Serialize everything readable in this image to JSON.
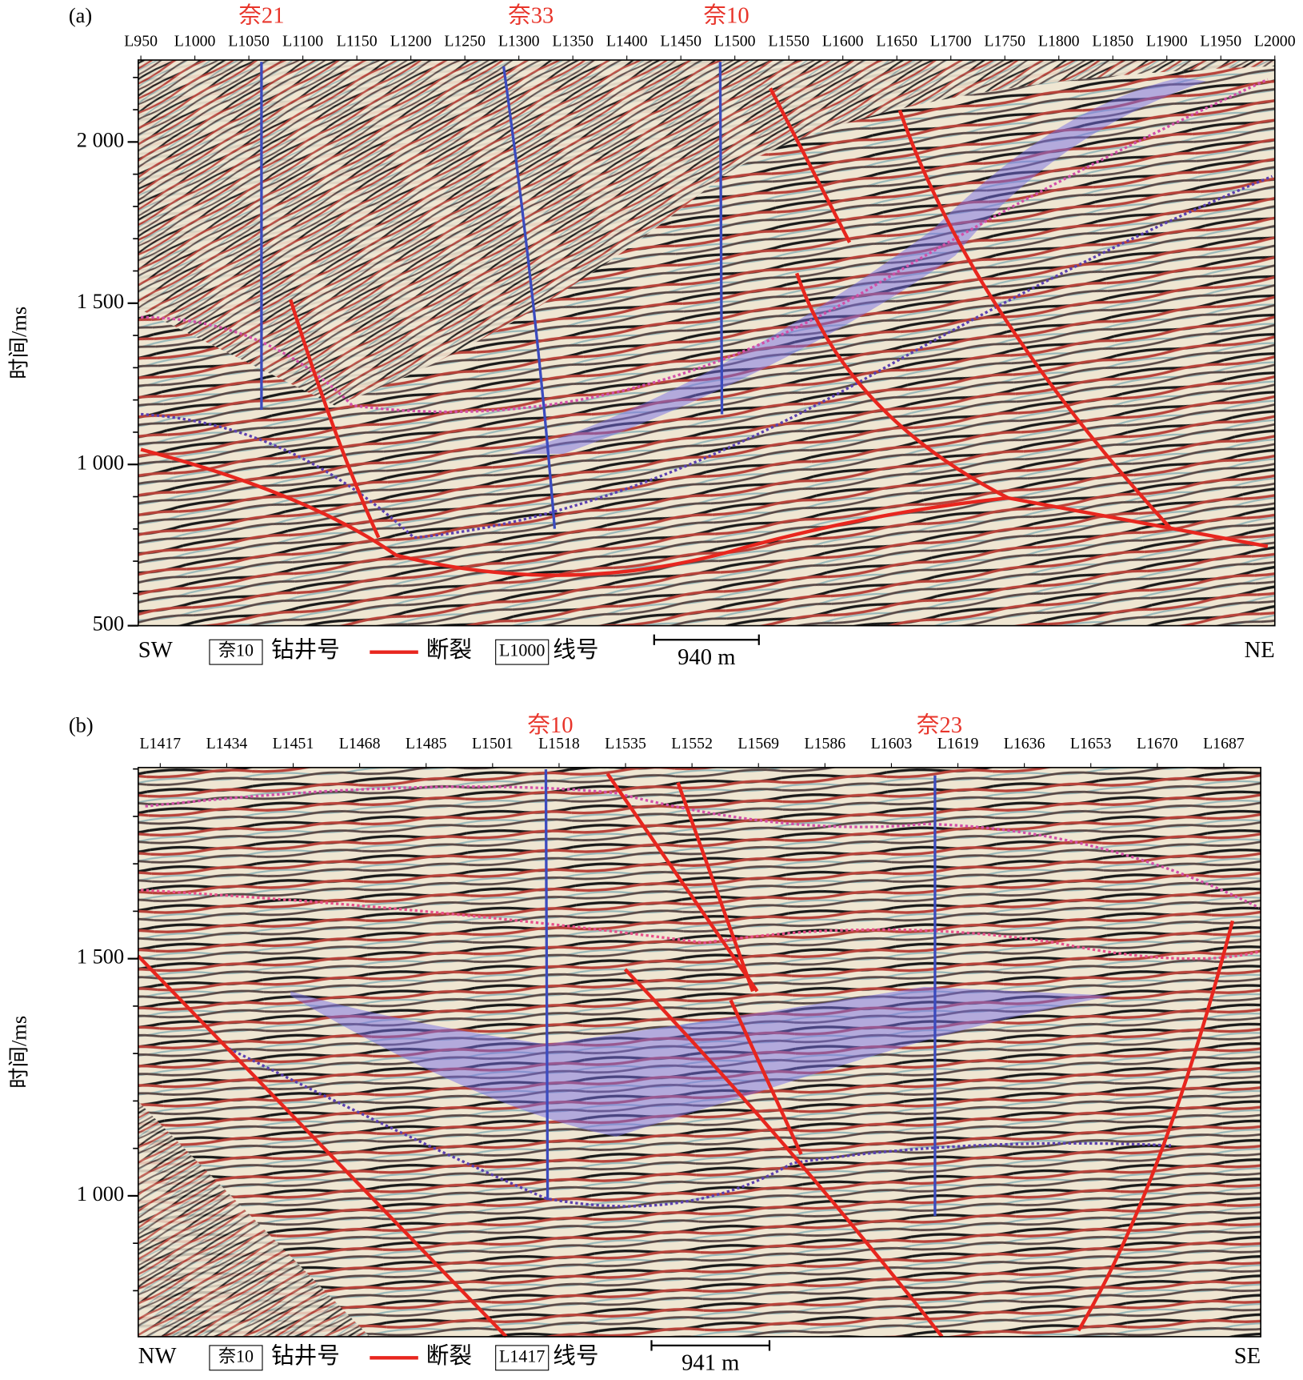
{
  "panels": [
    {
      "label": "(a)",
      "line_labels": [
        "L950",
        "L1000",
        "L1050",
        "L1100",
        "L1150",
        "L1200",
        "L1250",
        "L1300",
        "L1350",
        "L1400",
        "L1450",
        "L1500",
        "L1550",
        "L1600",
        "L1650",
        "L1700",
        "L1750",
        "L1800",
        "L1850",
        "L1900",
        "L1950",
        "L2000"
      ],
      "wells": [
        "奈21",
        "奈33",
        "奈10"
      ],
      "y_axis_label": "时间/ms",
      "ylim": [
        500,
        2254
      ],
      "yticks": [
        500,
        {
          "value": 1000,
          "label": "1 000"
        },
        {
          "value": 1500,
          "label": "1 500"
        },
        {
          "value": 2000,
          "label": "2 000"
        }
      ],
      "yminor": [
        600,
        700,
        800,
        900,
        1100,
        1200,
        1300,
        1400,
        1600,
        1700,
        1800,
        1900,
        2100,
        2200
      ],
      "legend": {
        "left": "SW",
        "well_box": "奈10",
        "well_text": "钻井号",
        "fault_text": "断裂",
        "line_box": "L1000",
        "line_text": "线号",
        "scale": "940 m",
        "right": "NE"
      }
    },
    {
      "label": "(b)",
      "line_labels": [
        "L1417",
        "L1434",
        "L1451",
        "L1468",
        "L1485",
        "L1501",
        "L1518",
        "L1535",
        "L1552",
        "L1569",
        "L1586",
        "L1603",
        "L1619",
        "L1636",
        "L1653",
        "L1670",
        "L1687"
      ],
      "wells": [
        "奈10",
        "奈23"
      ],
      "y_axis_label": "时间/ms",
      "ylim": [
        703,
        1903
      ],
      "yticks": [
        {
          "value": 1000,
          "label": "1 000"
        },
        {
          "value": 1500,
          "label": "1 500"
        }
      ],
      "yminor": [
        800,
        900,
        1100,
        1200,
        1300,
        1400,
        1600,
        1700,
        1800,
        1900
      ],
      "legend": {
        "left": "NW",
        "well_box": "奈10",
        "well_text": "钻井号",
        "fault_text": "断裂",
        "line_box": "L1417",
        "line_text": "线号",
        "scale": "941 m",
        "right": "SE"
      }
    }
  ]
}
